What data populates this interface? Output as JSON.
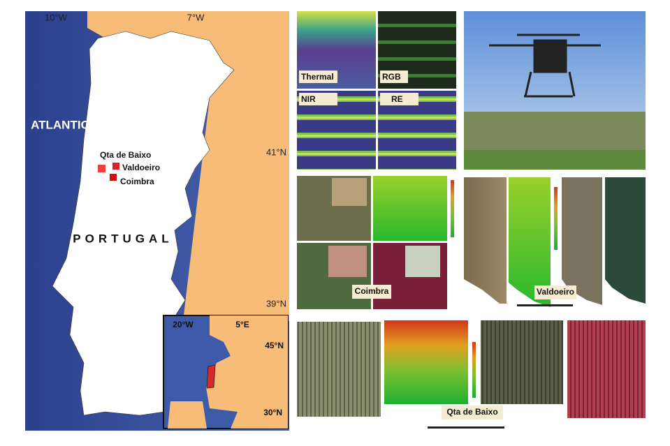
{
  "map": {
    "lon_labels": [
      "10°W",
      "7°W"
    ],
    "lat_labels": [
      "41°N",
      "39°N"
    ],
    "sea_label": "ATLANTIC",
    "country_label": "PORTUGAL",
    "sites": [
      "Qta de Baixo",
      "Valdoeiro",
      "Coimbra"
    ],
    "inset": {
      "lon_labels": [
        "20°W",
        "5°E"
      ],
      "lat_labels": [
        "45°N",
        "30°N"
      ]
    }
  },
  "panels": {
    "bands": [
      "Thermal",
      "RGB",
      "NIR",
      "RE"
    ],
    "sites": [
      "Coimbra",
      "Valdoeiro",
      "Qta de Baixo"
    ]
  }
}
